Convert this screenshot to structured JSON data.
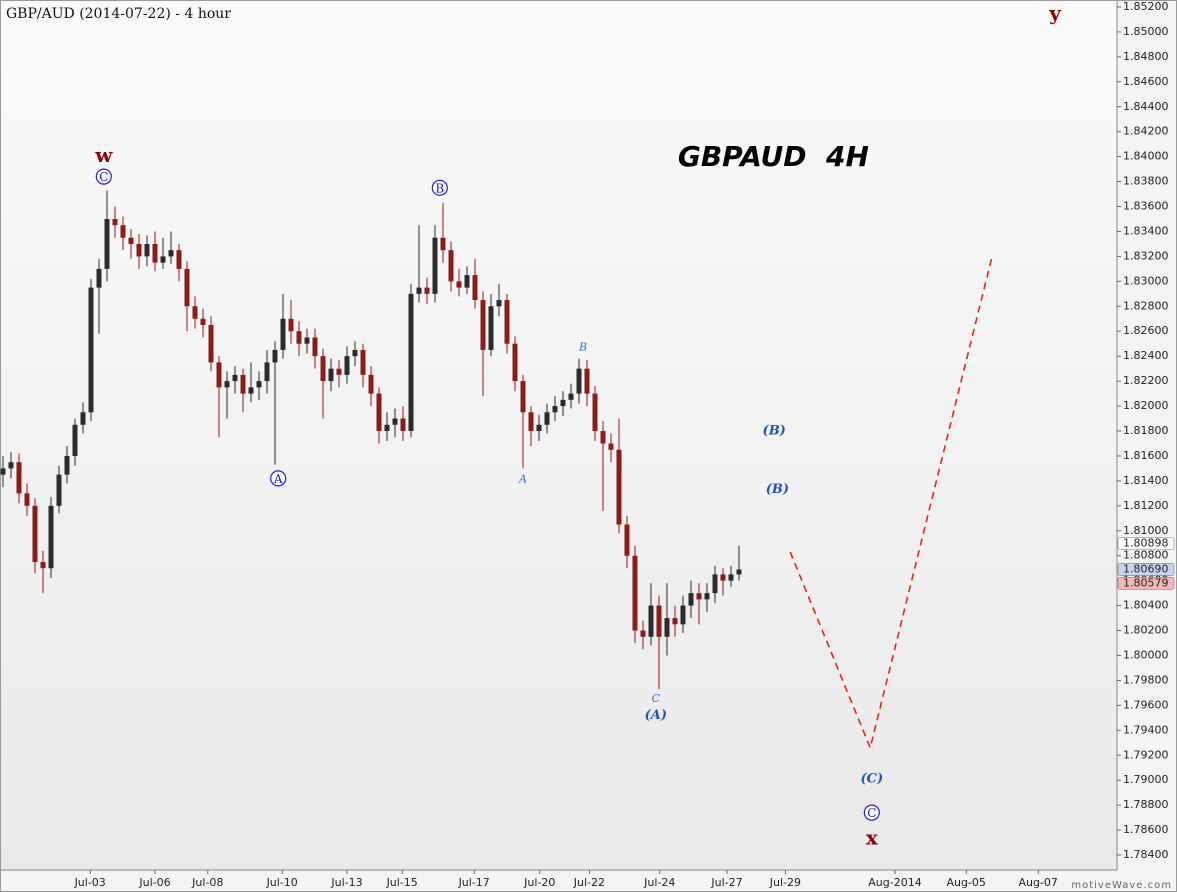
{
  "chart_data": {
    "type": "candlestick",
    "title": "GBP/AUD (2014-07-22) - 4 hour",
    "watermark": "motiveWave.com",
    "up_color": "#2b2b2b",
    "down_color": "#8e1b1b",
    "open": [
      1.8145,
      1.815,
      1.8155,
      1.813,
      1.812,
      1.8075,
      1.807,
      1.812,
      1.8145,
      1.816,
      1.8185,
      1.8195,
      1.8295,
      1.831,
      1.835,
      1.8345,
      1.8335,
      1.833,
      1.832,
      1.833,
      1.8315,
      1.832,
      1.8325,
      1.831,
      1.828,
      1.827,
      1.8265,
      1.8235,
      1.8215,
      1.822,
      1.8225,
      1.821,
      1.8215,
      1.822,
      1.8235,
      1.8245,
      1.827,
      1.826,
      1.825,
      1.8255,
      1.824,
      1.822,
      1.823,
      1.8225,
      1.824,
      1.8245,
      1.8225,
      1.821,
      1.818,
      1.8185,
      1.819,
      1.818,
      1.829,
      1.8295,
      1.829,
      1.8335,
      1.8325,
      1.83,
      1.8295,
      1.8305,
      1.8285,
      1.8245,
      1.828,
      1.8285,
      1.825,
      1.822,
      1.8195,
      1.818,
      1.8185,
      1.8195,
      1.82,
      1.8205,
      1.821,
      1.823,
      1.821,
      1.818,
      1.817,
      1.8165,
      1.8105,
      1.808,
      1.802,
      1.8015,
      1.804,
      1.8015,
      1.803,
      1.8025,
      1.804,
      1.805,
      1.8045,
      1.805,
      1.8065,
      1.806,
      1.8065
    ],
    "high": [
      1.816,
      1.8163,
      1.8162,
      1.8138,
      1.8126,
      1.8084,
      1.8127,
      1.8152,
      1.8168,
      1.819,
      1.8203,
      1.8302,
      1.8318,
      1.8373,
      1.836,
      1.8352,
      1.8342,
      1.8338,
      1.8337,
      1.834,
      1.8335,
      1.834,
      1.833,
      1.8316,
      1.8288,
      1.8278,
      1.8272,
      1.824,
      1.8228,
      1.8232,
      1.823,
      1.8235,
      1.8228,
      1.8245,
      1.8252,
      1.829,
      1.8285,
      1.8268,
      1.8262,
      1.8262,
      1.8246,
      1.8238,
      1.8237,
      1.8248,
      1.8252,
      1.825,
      1.8232,
      1.8215,
      1.8195,
      1.8198,
      1.82,
      1.8298,
      1.8345,
      1.8303,
      1.8345,
      1.8363,
      1.8332,
      1.831,
      1.8312,
      1.8318,
      1.8292,
      1.829,
      1.8298,
      1.829,
      1.8256,
      1.8225,
      1.82,
      1.8193,
      1.8202,
      1.8208,
      1.8212,
      1.8218,
      1.8238,
      1.8237,
      1.8216,
      1.8188,
      1.8178,
      1.819,
      1.8112,
      1.8088,
      1.8028,
      1.8058,
      1.8048,
      1.8058,
      1.804,
      1.8048,
      1.806,
      1.8058,
      1.8058,
      1.8072,
      1.807,
      1.8072,
      1.8088
    ],
    "low": [
      1.8135,
      1.8142,
      1.8122,
      1.8112,
      1.8066,
      1.805,
      1.8062,
      1.8114,
      1.8138,
      1.8152,
      1.8178,
      1.8188,
      1.8258,
      1.83,
      1.8335,
      1.8325,
      1.8318,
      1.831,
      1.8312,
      1.8308,
      1.831,
      1.8314,
      1.83,
      1.826,
      1.8262,
      1.8255,
      1.8228,
      1.8175,
      1.819,
      1.821,
      1.8195,
      1.8203,
      1.8205,
      1.821,
      1.8153,
      1.8238,
      1.825,
      1.824,
      1.8242,
      1.823,
      1.819,
      1.8212,
      1.8215,
      1.8218,
      1.8232,
      1.8215,
      1.82,
      1.817,
      1.8172,
      1.8175,
      1.8172,
      1.8175,
      1.8283,
      1.8282,
      1.8283,
      1.8315,
      1.8292,
      1.8288,
      1.829,
      1.8278,
      1.8208,
      1.824,
      1.8272,
      1.8242,
      1.8212,
      1.815,
      1.8168,
      1.8172,
      1.8178,
      1.8188,
      1.8192,
      1.8198,
      1.8202,
      1.82,
      1.8172,
      1.8116,
      1.8155,
      1.8098,
      1.807,
      1.801,
      1.8005,
      1.8008,
      1.7973,
      1.8,
      1.8015,
      1.8018,
      1.803,
      1.8025,
      1.8035,
      1.8042,
      1.8048,
      1.8055,
      1.806
    ],
    "close": [
      1.815,
      1.8155,
      1.813,
      1.812,
      1.8075,
      1.807,
      1.812,
      1.8145,
      1.816,
      1.8185,
      1.8195,
      1.8295,
      1.831,
      1.835,
      1.8345,
      1.8335,
      1.833,
      1.832,
      1.833,
      1.8315,
      1.832,
      1.8325,
      1.831,
      1.828,
      1.827,
      1.8265,
      1.8235,
      1.8215,
      1.822,
      1.8225,
      1.821,
      1.8215,
      1.822,
      1.8235,
      1.8245,
      1.827,
      1.826,
      1.825,
      1.8255,
      1.824,
      1.822,
      1.823,
      1.8225,
      1.824,
      1.8245,
      1.8225,
      1.821,
      1.818,
      1.8185,
      1.819,
      1.818,
      1.829,
      1.8295,
      1.829,
      1.8335,
      1.8325,
      1.83,
      1.8295,
      1.8305,
      1.8285,
      1.8245,
      1.828,
      1.8285,
      1.825,
      1.822,
      1.8195,
      1.818,
      1.8185,
      1.8195,
      1.82,
      1.8205,
      1.821,
      1.823,
      1.821,
      1.818,
      1.817,
      1.8165,
      1.8105,
      1.808,
      1.802,
      1.8015,
      1.804,
      1.8015,
      1.803,
      1.8025,
      1.804,
      1.805,
      1.8045,
      1.805,
      1.8065,
      1.806,
      1.8065,
      1.8069
    ],
    "xlim": [
      -0.375,
      139.25
    ],
    "xticks": [
      {
        "value": 10.9,
        "label": "Jul-03"
      },
      {
        "value": 19,
        "label": "Jul-06"
      },
      {
        "value": 25.6,
        "label": "Jul-08"
      },
      {
        "value": 34.9,
        "label": "Jul-10"
      },
      {
        "value": 43,
        "label": "Jul-13"
      },
      {
        "value": 49.9,
        "label": "Jul-15"
      },
      {
        "value": 58.9,
        "label": "Jul-17"
      },
      {
        "value": 67.1,
        "label": "Jul-20"
      },
      {
        "value": 73.3,
        "label": "Jul-22"
      },
      {
        "value": 82.1,
        "label": "Jul-24"
      },
      {
        "value": 90.5,
        "label": "Jul-27"
      },
      {
        "value": 97.8,
        "label": "Jul-29"
      },
      {
        "value": 111.5,
        "label": "Aug-2014"
      },
      {
        "value": 120.4,
        "label": "Aug-05"
      },
      {
        "value": 129.4,
        "label": "Aug-07"
      }
    ],
    "ylim": [
      1.7828,
      1.85256
    ],
    "yticks": [
      {
        "value": 1.784,
        "label": "1.78400"
      },
      {
        "value": 1.786,
        "label": "1.78600"
      },
      {
        "value": 1.788,
        "label": "1.78800"
      },
      {
        "value": 1.79,
        "label": "1.79000"
      },
      {
        "value": 1.792,
        "label": "1.79200"
      },
      {
        "value": 1.794,
        "label": "1.79400"
      },
      {
        "value": 1.796,
        "label": "1.79600"
      },
      {
        "value": 1.798,
        "label": "1.79800"
      },
      {
        "value": 1.8,
        "label": "1.80000"
      },
      {
        "value": 1.802,
        "label": "1.80200"
      },
      {
        "value": 1.804,
        "label": "1.80400"
      },
      {
        "value": 1.806,
        "label": "1.80600"
      },
      {
        "value": 1.808,
        "label": "1.80800"
      },
      {
        "value": 1.81,
        "label": "1.81000"
      },
      {
        "value": 1.812,
        "label": "1.81200"
      },
      {
        "value": 1.814,
        "label": "1.81400"
      },
      {
        "value": 1.816,
        "label": "1.81600"
      },
      {
        "value": 1.818,
        "label": "1.81800"
      },
      {
        "value": 1.82,
        "label": "1.82000"
      },
      {
        "value": 1.822,
        "label": "1.82200"
      },
      {
        "value": 1.824,
        "label": "1.82400"
      },
      {
        "value": 1.826,
        "label": "1.82600"
      },
      {
        "value": 1.828,
        "label": "1.82800"
      },
      {
        "value": 1.83,
        "label": "1.83000"
      },
      {
        "value": 1.832,
        "label": "1.83200"
      },
      {
        "value": 1.834,
        "label": "1.83400"
      },
      {
        "value": 1.836,
        "label": "1.83600"
      },
      {
        "value": 1.838,
        "label": "1.83800"
      },
      {
        "value": 1.84,
        "label": "1.84000"
      },
      {
        "value": 1.842,
        "label": "1.84200"
      },
      {
        "value": 1.844,
        "label": "1.84400"
      },
      {
        "value": 1.846,
        "label": "1.84600"
      },
      {
        "value": 1.848,
        "label": "1.84800"
      },
      {
        "value": 1.85,
        "label": "1.85000"
      },
      {
        "value": 1.852,
        "label": "1.85200"
      }
    ],
    "price_markers": [
      {
        "value": 1.80898,
        "label": "1.80898",
        "color": "#ffffff",
        "text_color": "#222222"
      },
      {
        "value": 1.8069,
        "label": "1.80690",
        "color": "#c8d4f0",
        "text_color": "#222222"
      },
      {
        "value": 1.80579,
        "label": "1.80579",
        "color": "#f4b8b8",
        "text_color": "#222222"
      }
    ],
    "projection": {
      "x": [
        98.4,
        108.4,
        123.6
      ],
      "values": [
        1.8083,
        1.7926,
        1.8319
      ],
      "color": "#e52222"
    },
    "annotations": [
      {
        "text": "w",
        "x": 12.6,
        "y": 1.84,
        "style": "bold",
        "color": "#8b0000"
      },
      {
        "text": "C",
        "x": 12.6,
        "y": 1.8384,
        "style": "circle",
        "color": "#1c1ce0"
      },
      {
        "text": "B",
        "x": 54.6,
        "y": 1.8375,
        "style": "circle",
        "color": "#1c1ce0"
      },
      {
        "text": "A",
        "x": 34.4,
        "y": 1.8142,
        "style": "circle",
        "color": "#1c1ce0"
      },
      {
        "text": "B",
        "x": 72.5,
        "y": 1.8247,
        "style": "small",
        "color": "#3b6fd8"
      },
      {
        "text": "A",
        "x": 65,
        "y": 1.8141,
        "style": "small",
        "color": "#3b6fd8"
      },
      {
        "text": "C",
        "x": 81.6,
        "y": 1.7965,
        "style": "small",
        "color": "#3b6fd8"
      },
      {
        "text": "(A)",
        "x": 81.6,
        "y": 1.7952,
        "style": "italic",
        "color": "#2450b8"
      },
      {
        "text": "(B)",
        "x": 96.4,
        "y": 1.818,
        "style": "italic",
        "color": "#2450b8"
      },
      {
        "text": "(B)",
        "x": 96.8,
        "y": 1.8133,
        "style": "italic",
        "color": "#2450b8"
      },
      {
        "text": "(C)",
        "x": 108.6,
        "y": 1.7901,
        "style": "italic",
        "color": "#2450b8"
      },
      {
        "text": "C",
        "x": 108.6,
        "y": 1.7874,
        "style": "circle",
        "color": "#1c1ce0"
      },
      {
        "text": "x",
        "x": 108.6,
        "y": 1.7853,
        "style": "bold",
        "color": "#8b0000"
      },
      {
        "text": "y",
        "x": 131.5,
        "y": 1.8514,
        "style": "bold",
        "color": "#8b0000"
      },
      {
        "text": "GBPAUD  4H",
        "x": 96.3,
        "y": 1.8399,
        "style": "heading",
        "color": "#000000"
      }
    ]
  }
}
